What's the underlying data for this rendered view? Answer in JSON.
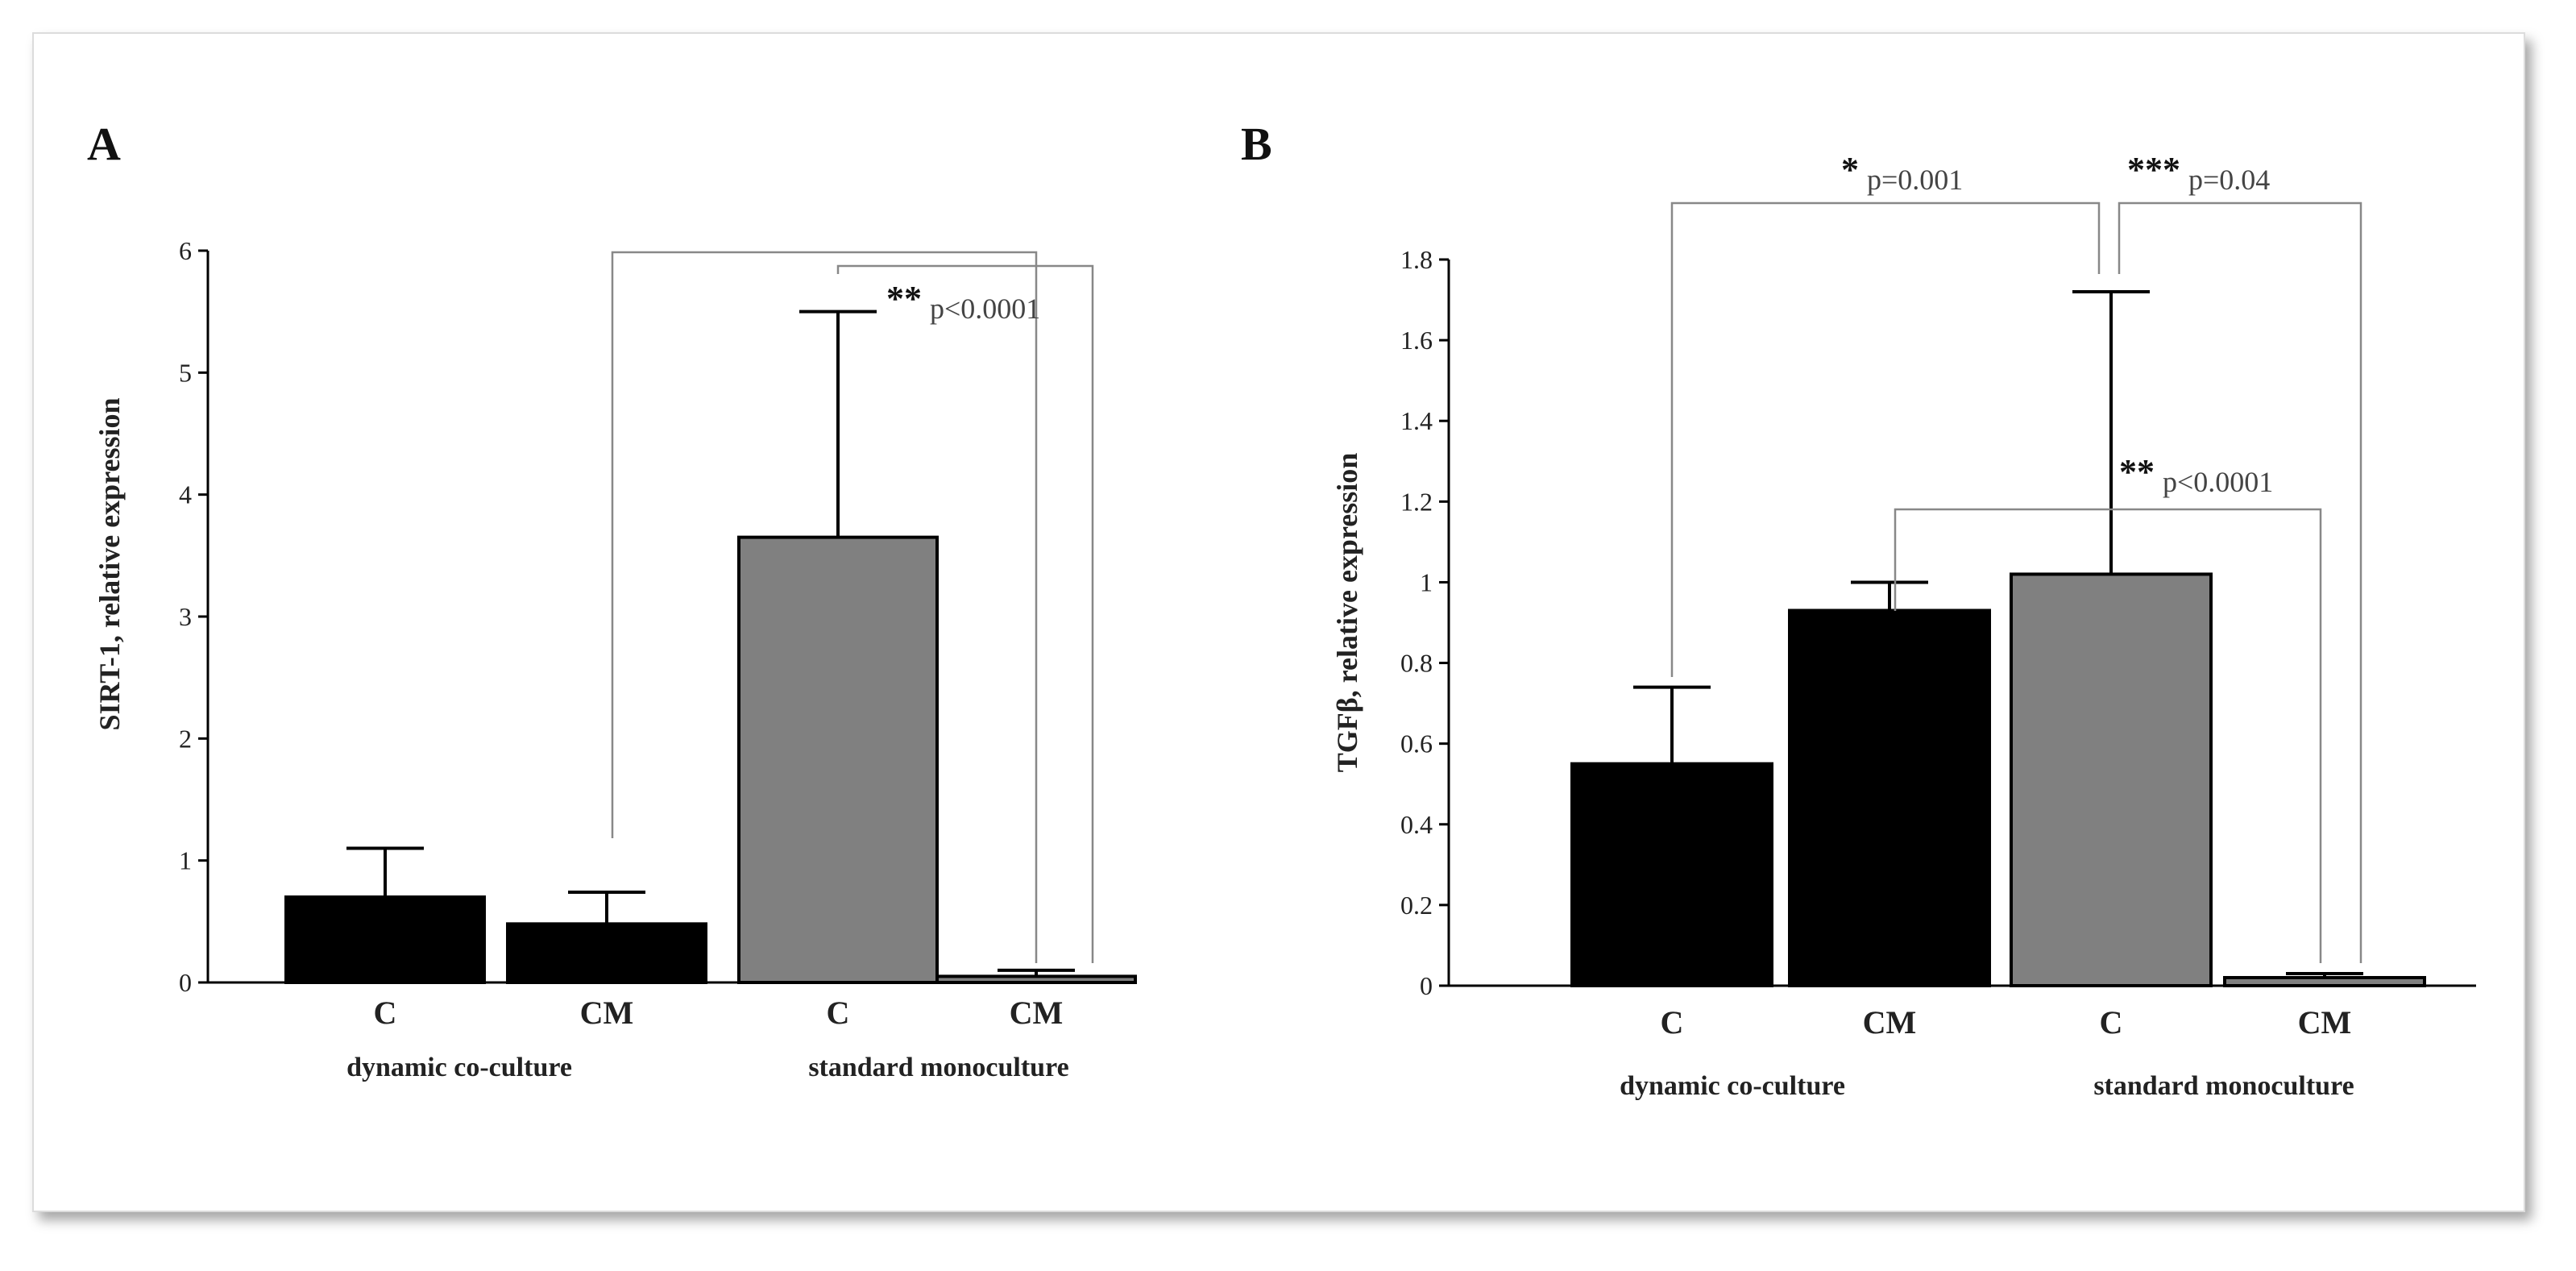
{
  "chart_data": [
    {
      "panel": "A",
      "type": "bar",
      "ylabel": "SIRT-1, relative expression",
      "ylim": [
        0,
        6
      ],
      "yticks": [
        "0",
        "1",
        "2",
        "3",
        "4",
        "5",
        "6"
      ],
      "categories": [
        "C",
        "CM",
        "C",
        "CM"
      ],
      "values": [
        0.7,
        0.48,
        3.65,
        0.05
      ],
      "errors": [
        0.4,
        0.26,
        1.85,
        0.05
      ],
      "bar_colors": [
        "#000000",
        "#000000",
        "#808080",
        "#808080"
      ],
      "groups": [
        {
          "label": "dynamic co-culture",
          "from": 0,
          "to": 1
        },
        {
          "label": "standard monoculture",
          "from": 2,
          "to": 3
        }
      ],
      "annotations": [
        {
          "from": 1,
          "to": 3,
          "stars": "",
          "p": ""
        },
        {
          "from": 2,
          "to": 3,
          "stars": "**",
          "p": "p<0.0001"
        }
      ]
    },
    {
      "panel": "B",
      "type": "bar",
      "ylabel": "TGFβ, relative expression",
      "ylim": [
        0,
        1.8
      ],
      "yticks": [
        "0",
        "0.2",
        "0.4",
        "0.6",
        "0.8",
        "1",
        "1.2",
        "1.4",
        "1.6",
        "1.8"
      ],
      "categories": [
        "C",
        "CM",
        "C",
        "CM"
      ],
      "values": [
        0.55,
        0.93,
        1.02,
        0.02
      ],
      "errors": [
        0.19,
        0.07,
        0.7,
        0.01
      ],
      "bar_colors": [
        "#000000",
        "#000000",
        "#808080",
        "#808080"
      ],
      "groups": [
        {
          "label": "dynamic co-culture",
          "from": 0,
          "to": 1
        },
        {
          "label": "standard monoculture",
          "from": 2,
          "to": 3
        }
      ],
      "annotations": [
        {
          "from": 0,
          "to": 2,
          "stars": "*",
          "p": "p=0.001"
        },
        {
          "from": 2,
          "to": 3,
          "stars": "***",
          "p": "p=0.04"
        },
        {
          "from": 1,
          "to": 3,
          "stars": "**",
          "p": "p<0.0001"
        }
      ]
    }
  ]
}
